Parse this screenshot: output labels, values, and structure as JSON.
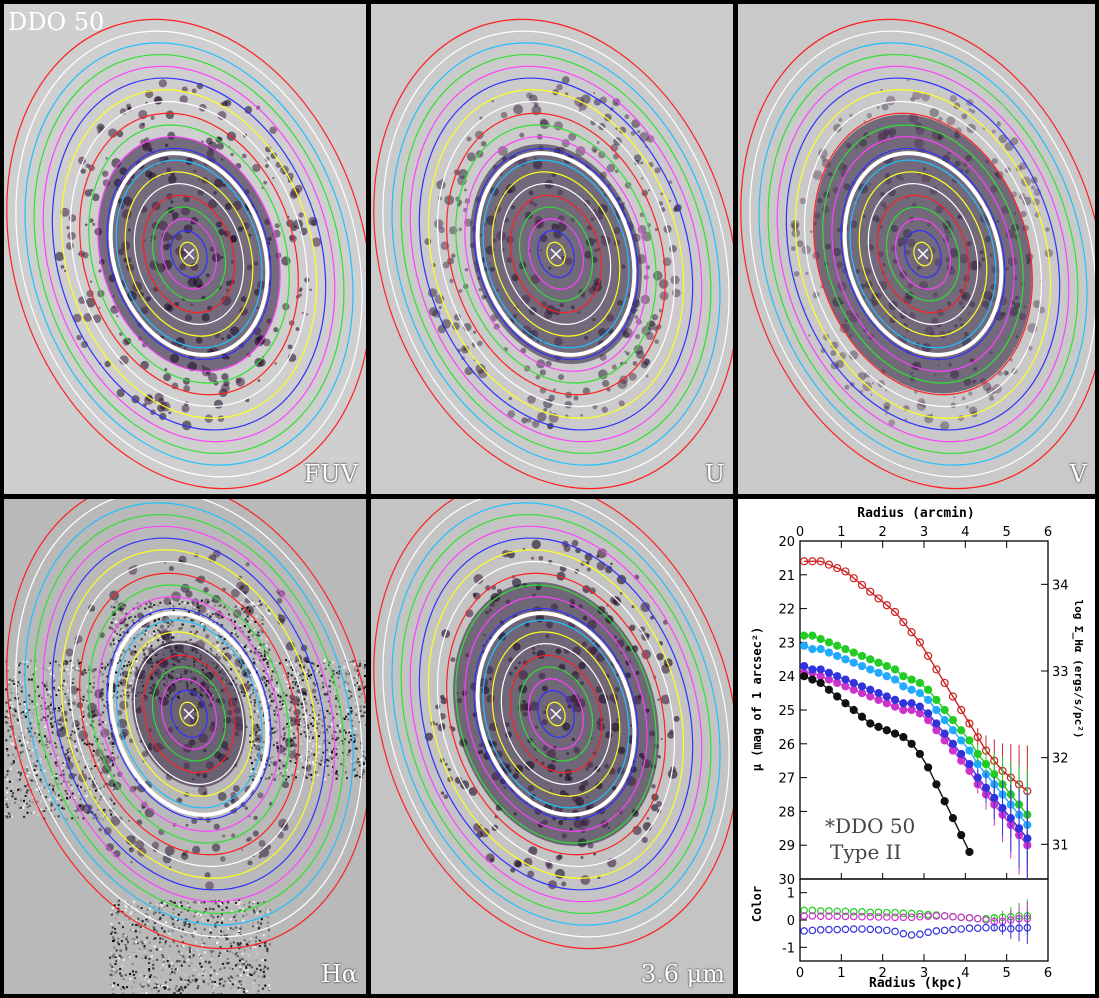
{
  "galaxy_name": "DDO 50",
  "panels": [
    {
      "id": "fuv",
      "label": "FUV",
      "bg": "#cfcfcf",
      "scatter": 0.55,
      "core": 0.8
    },
    {
      "id": "u",
      "label": "U",
      "bg": "#cbcbcb",
      "scatter": 0.45,
      "core": 0.75
    },
    {
      "id": "v",
      "label": "V",
      "bg": "#c9c9c9",
      "scatter": 0.35,
      "core": 0.95
    },
    {
      "id": "halpha",
      "label": "Hα",
      "bg": "#b9b9b9",
      "scatter": 0.5,
      "core": 0.5
    },
    {
      "id": "irac",
      "label": "3.6 μm",
      "bg": "#c4c4c4",
      "scatter": 0.6,
      "core": 0.9
    }
  ],
  "ellipse_colors": [
    "#ff2020",
    "#ffffff",
    "#20c0ff",
    "#30e030",
    "#ff40ff",
    "#3030ff",
    "#ffff20",
    "#ffffff",
    "#ff2020",
    "#30e030",
    "#ff40ff",
    "#3030ff",
    "#20c0ff",
    "#ffff20",
    "#ffffff",
    "#ff2020",
    "#30e030",
    "#ff40ff",
    "#3030ff",
    "#ffff20"
  ],
  "plot": {
    "top_axis_label": "Radius (arcmin)",
    "bottom_axis_label": "Radius (kpc)",
    "left_axis_label": "μ (mag of 1 arcsec²)",
    "right_axis_label": "log Σ_Hα (ergs/s/pc²)",
    "lower_axis_label": "Color",
    "annotation_line1": "*DDO 50",
    "annotation_line2": "Type II"
  },
  "chart_data": {
    "type": "scatter",
    "title": "",
    "xlabel": "Radius (kpc)",
    "x2label": "Radius (arcmin)",
    "ylabel": "μ (mag of 1 arcsec²)",
    "y2label": "log Σ_Hα (ergs/s/pc²)",
    "xlim": [
      0,
      6
    ],
    "x2lim": [
      0,
      6
    ],
    "ylim": [
      30,
      20
    ],
    "y2lim": [
      30.6,
      34.5
    ],
    "x_ticks": [
      0,
      1,
      2,
      3,
      4,
      5,
      6
    ],
    "y_ticks": [
      20,
      21,
      22,
      23,
      24,
      25,
      26,
      27,
      28,
      29,
      30
    ],
    "y2_ticks": [
      31,
      32,
      33,
      34
    ],
    "series": [
      {
        "color": "#cc2222",
        "marker": "open-circle",
        "x": [
          0.1,
          0.3,
          0.5,
          0.7,
          0.9,
          1.1,
          1.3,
          1.5,
          1.7,
          1.9,
          2.1,
          2.3,
          2.5,
          2.7,
          2.9,
          3.1,
          3.3,
          3.5,
          3.7,
          3.9,
          4.1,
          4.3,
          4.5,
          4.7,
          4.9,
          5.1,
          5.3,
          5.5
        ],
        "y": [
          20.6,
          20.6,
          20.6,
          20.7,
          20.8,
          20.9,
          21.1,
          21.3,
          21.5,
          21.7,
          21.9,
          22.1,
          22.4,
          22.7,
          23.0,
          23.4,
          23.8,
          24.2,
          24.6,
          25.0,
          25.4,
          25.8,
          26.2,
          26.5,
          26.8,
          27.0,
          27.2,
          27.4
        ]
      },
      {
        "color": "#22aaff",
        "marker": "filled-circle",
        "x": [
          0.1,
          0.3,
          0.5,
          0.7,
          0.9,
          1.1,
          1.3,
          1.5,
          1.7,
          1.9,
          2.1,
          2.3,
          2.5,
          2.7,
          2.9,
          3.1,
          3.3,
          3.5,
          3.7,
          3.9,
          4.1,
          4.3,
          4.5,
          4.7,
          4.9,
          5.1,
          5.3,
          5.5
        ],
        "y": [
          23.1,
          23.2,
          23.2,
          23.3,
          23.4,
          23.5,
          23.6,
          23.7,
          23.8,
          23.9,
          24.0,
          24.1,
          24.3,
          24.4,
          24.5,
          24.7,
          25.0,
          25.3,
          25.6,
          25.9,
          26.2,
          26.6,
          26.9,
          27.2,
          27.5,
          27.8,
          28.1,
          28.4
        ]
      },
      {
        "color": "#22cc22",
        "marker": "filled-circle",
        "x": [
          0.1,
          0.3,
          0.5,
          0.7,
          0.9,
          1.1,
          1.3,
          1.5,
          1.7,
          1.9,
          2.1,
          2.3,
          2.5,
          2.7,
          2.9,
          3.1,
          3.3,
          3.5,
          3.7,
          3.9,
          4.1,
          4.3,
          4.5,
          4.7,
          4.9,
          5.1,
          5.3,
          5.5
        ],
        "y": [
          22.8,
          22.8,
          22.9,
          23.0,
          23.1,
          23.2,
          23.3,
          23.4,
          23.5,
          23.6,
          23.7,
          23.8,
          24.0,
          24.1,
          24.2,
          24.4,
          24.7,
          25.0,
          25.3,
          25.6,
          25.9,
          26.3,
          26.6,
          26.9,
          27.2,
          27.5,
          27.8,
          28.1
        ]
      },
      {
        "color": "#cc33cc",
        "marker": "filled-circle",
        "x": [
          0.1,
          0.3,
          0.5,
          0.7,
          0.9,
          1.1,
          1.3,
          1.5,
          1.7,
          1.9,
          2.1,
          2.3,
          2.5,
          2.7,
          2.9,
          3.1,
          3.3,
          3.5,
          3.7,
          3.9,
          4.1,
          4.3,
          4.5,
          4.7,
          4.9,
          5.1,
          5.3,
          5.5
        ],
        "y": [
          23.9,
          23.9,
          24.0,
          24.1,
          24.2,
          24.3,
          24.4,
          24.5,
          24.6,
          24.7,
          24.8,
          24.9,
          25.0,
          25.0,
          25.1,
          25.3,
          25.6,
          25.9,
          26.2,
          26.5,
          26.8,
          27.2,
          27.5,
          27.8,
          28.1,
          28.4,
          28.7,
          29.0
        ]
      },
      {
        "color": "#3333dd",
        "marker": "filled-circle",
        "x": [
          0.1,
          0.3,
          0.5,
          0.7,
          0.9,
          1.1,
          1.3,
          1.5,
          1.7,
          1.9,
          2.1,
          2.3,
          2.5,
          2.7,
          2.9,
          3.1,
          3.3,
          3.5,
          3.7,
          3.9,
          4.1,
          4.3,
          4.5,
          4.7,
          4.9,
          5.1,
          5.3,
          5.5
        ],
        "y": [
          23.7,
          23.8,
          23.8,
          23.9,
          24.0,
          24.1,
          24.2,
          24.3,
          24.4,
          24.5,
          24.6,
          24.7,
          24.8,
          24.8,
          24.9,
          25.1,
          25.4,
          25.7,
          26.0,
          26.3,
          26.6,
          27.0,
          27.3,
          27.6,
          27.9,
          28.2,
          28.5,
          28.8
        ]
      },
      {
        "color": "#111111",
        "marker": "filled-circle",
        "x": [
          0.1,
          0.3,
          0.5,
          0.7,
          0.9,
          1.1,
          1.3,
          1.5,
          1.7,
          1.9,
          2.1,
          2.3,
          2.5,
          2.7,
          2.9,
          3.1,
          3.3,
          3.5,
          3.7,
          3.9,
          4.1
        ],
        "y": [
          24.0,
          24.1,
          24.2,
          24.4,
          24.6,
          24.8,
          25.0,
          25.2,
          25.4,
          25.5,
          25.6,
          25.7,
          25.8,
          26.0,
          26.3,
          26.7,
          27.2,
          27.7,
          28.2,
          28.7,
          29.2
        ]
      }
    ],
    "color_panel": {
      "ylabel": "Color",
      "ylim": [
        -1.5,
        1.5
      ],
      "y_ticks": [
        -1,
        0,
        1
      ],
      "series": [
        {
          "color": "#22cc22",
          "marker": "open-circle",
          "x": [
            0.1,
            0.3,
            0.5,
            0.7,
            0.9,
            1.1,
            1.3,
            1.5,
            1.7,
            1.9,
            2.1,
            2.3,
            2.5,
            2.7,
            2.9,
            3.1,
            3.3,
            3.5,
            3.7,
            3.9,
            4.1,
            4.3,
            4.5,
            4.7,
            4.9,
            5.1,
            5.3,
            5.5
          ],
          "y": [
            0.35,
            0.35,
            0.33,
            0.33,
            0.32,
            0.32,
            0.3,
            0.3,
            0.28,
            0.28,
            0.27,
            0.27,
            0.25,
            0.24,
            0.22,
            0.2,
            0.18,
            0.15,
            0.12,
            0.1,
            0.08,
            0.05,
            0.05,
            0.08,
            0.1,
            0.12,
            0.15,
            0.15
          ]
        },
        {
          "color": "#cc33cc",
          "marker": "open-circle",
          "x": [
            0.1,
            0.3,
            0.5,
            0.7,
            0.9,
            1.1,
            1.3,
            1.5,
            1.7,
            1.9,
            2.1,
            2.3,
            2.5,
            2.7,
            2.9,
            3.1,
            3.3,
            3.5,
            3.7,
            3.9,
            4.1,
            4.3,
            4.5,
            4.7,
            4.9,
            5.1,
            5.3,
            5.5
          ],
          "y": [
            0.15,
            0.15,
            0.14,
            0.14,
            0.14,
            0.13,
            0.13,
            0.12,
            0.12,
            0.11,
            0.11,
            0.1,
            0.1,
            0.1,
            0.12,
            0.14,
            0.15,
            0.15,
            0.12,
            0.1,
            0.08,
            0.05,
            0.0,
            -0.05,
            -0.05,
            0.0,
            0.05,
            0.05
          ]
        },
        {
          "color": "#3333dd",
          "marker": "open-circle",
          "x": [
            0.1,
            0.3,
            0.5,
            0.7,
            0.9,
            1.1,
            1.3,
            1.5,
            1.7,
            1.9,
            2.1,
            2.3,
            2.5,
            2.7,
            2.9,
            3.1,
            3.3,
            3.5,
            3.7,
            3.9,
            4.1,
            4.3,
            4.5,
            4.7,
            4.9,
            5.1,
            5.3,
            5.5
          ],
          "y": [
            -0.4,
            -0.38,
            -0.36,
            -0.35,
            -0.35,
            -0.34,
            -0.33,
            -0.33,
            -0.34,
            -0.36,
            -0.38,
            -0.42,
            -0.5,
            -0.55,
            -0.52,
            -0.45,
            -0.4,
            -0.38,
            -0.35,
            -0.33,
            -0.3,
            -0.3,
            -0.28,
            -0.28,
            -0.3,
            -0.32,
            -0.3,
            -0.28
          ]
        }
      ]
    }
  }
}
